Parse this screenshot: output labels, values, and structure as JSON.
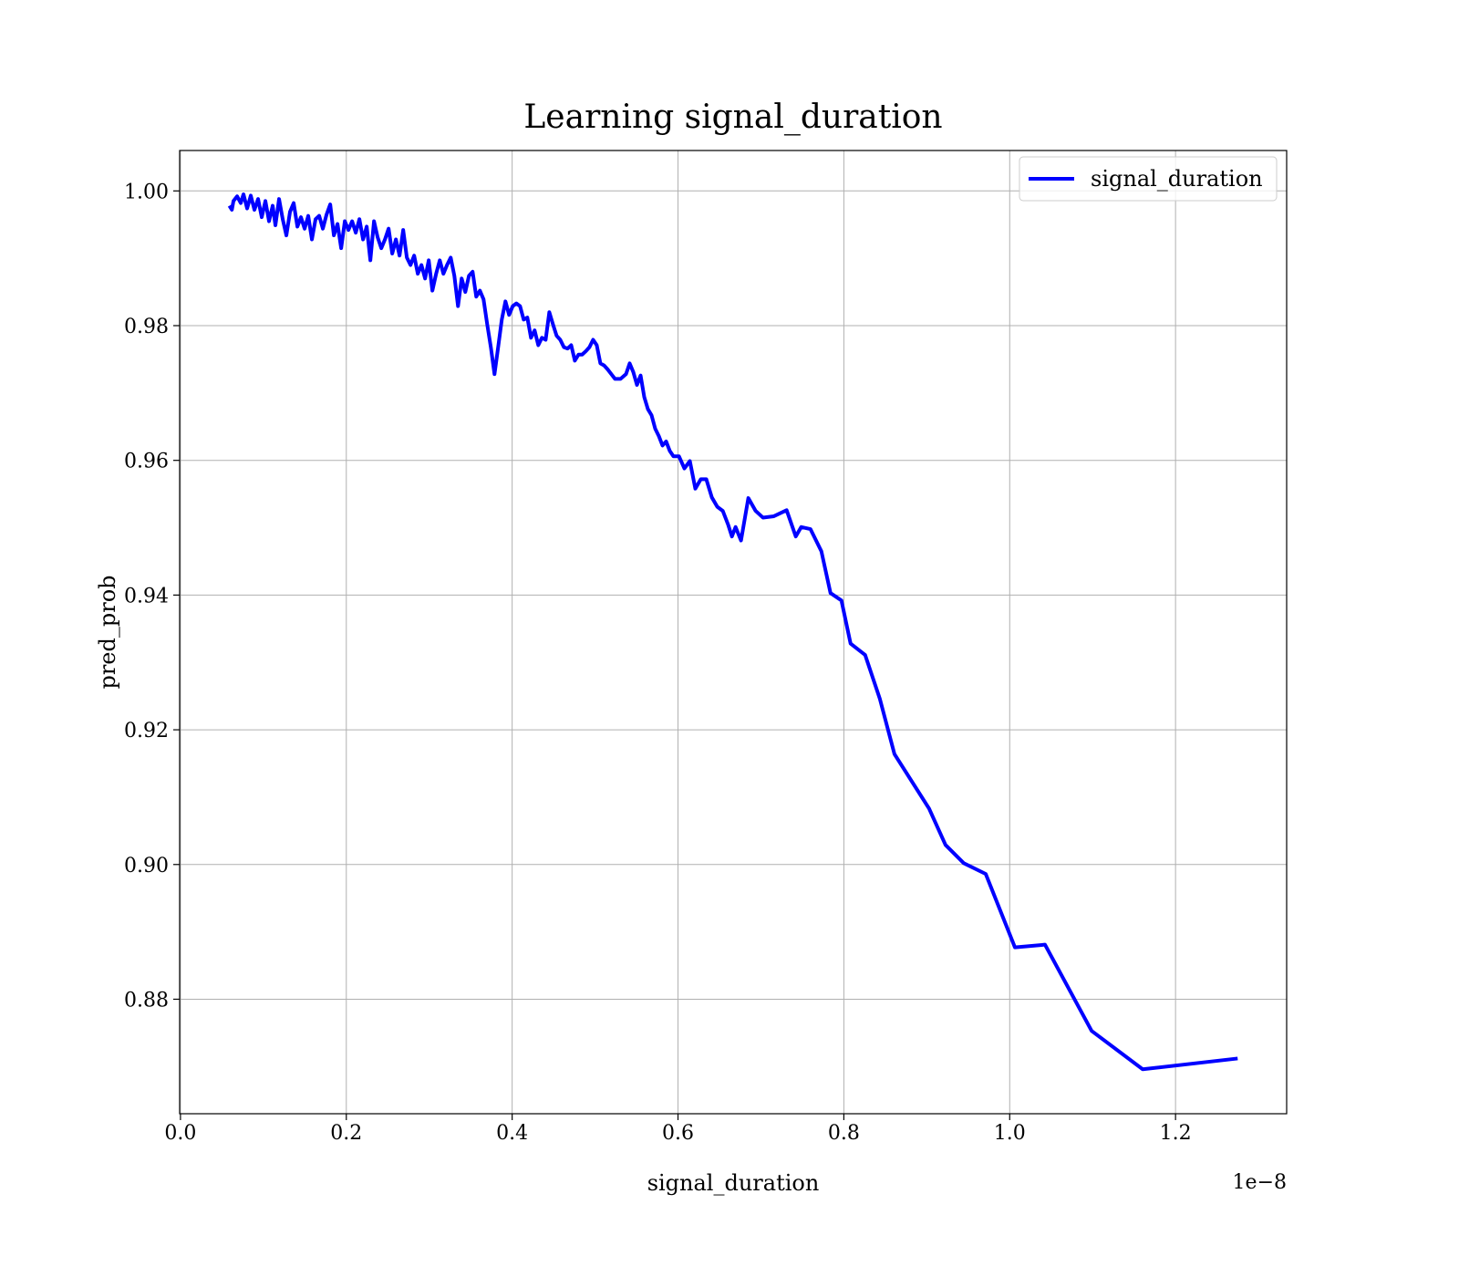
{
  "chart_data": {
    "type": "line",
    "title": "Learning signal_duration",
    "xlabel": "signal_duration",
    "ylabel": "pred_prob",
    "x_axis_offset": "1e−8",
    "xlim": [
      -0.001,
      1.334
    ],
    "ylim": [
      0.863,
      1.006
    ],
    "xticks": [
      {
        "value": 0,
        "label": "0.0"
      },
      0.2,
      0.4,
      0.6,
      0.8,
      {
        "value": 1,
        "label": "1.0"
      },
      1.2
    ],
    "yticks": [
      {
        "value": 0.88,
        "label": "0.88"
      },
      {
        "value": 0.9,
        "label": "0.90"
      },
      {
        "value": 0.92,
        "label": "0.92"
      },
      {
        "value": 0.94,
        "label": "0.94"
      },
      {
        "value": 0.96,
        "label": "0.96"
      },
      {
        "value": 0.98,
        "label": "0.98"
      },
      {
        "value": 1,
        "label": "1.00"
      }
    ],
    "grid": true,
    "legend": "upper right",
    "x": [
      0.059,
      0.062,
      0.0639,
      0.0683,
      0.0727,
      0.076,
      0.0804,
      0.0848,
      0.0892,
      0.0936,
      0.098,
      0.1024,
      0.1068,
      0.1112,
      0.1145,
      0.1189,
      0.1233,
      0.1277,
      0.1321,
      0.1365,
      0.141,
      0.1453,
      0.1497,
      0.1541,
      0.1585,
      0.1629,
      0.1673,
      0.1717,
      0.1762,
      0.1806,
      0.185,
      0.1894,
      0.1938,
      0.1982,
      0.2026,
      0.207,
      0.2114,
      0.2158,
      0.2202,
      0.2246,
      0.229,
      0.2334,
      0.2378,
      0.2422,
      0.2466,
      0.251,
      0.2554,
      0.2598,
      0.2642,
      0.2686,
      0.273,
      0.2774,
      0.2818,
      0.2862,
      0.2906,
      0.295,
      0.2994,
      0.3038,
      0.3083,
      0.3127,
      0.3171,
      0.3215,
      0.3259,
      0.3303,
      0.3347,
      0.3391,
      0.3435,
      0.3479,
      0.3523,
      0.3567,
      0.3611,
      0.3655,
      0.3699,
      0.3743,
      0.3787,
      0.3831,
      0.3875,
      0.3919,
      0.3963,
      0.4007,
      0.4051,
      0.4095,
      0.4139,
      0.4183,
      0.4227,
      0.4271,
      0.4315,
      0.4359,
      0.4404,
      0.4448,
      0.4492,
      0.4536,
      0.458,
      0.4624,
      0.4668,
      0.4712,
      0.4756,
      0.48,
      0.4844,
      0.4888,
      0.4932,
      0.4976,
      0.502,
      0.5064,
      0.5108,
      0.5152,
      0.5196,
      0.524,
      0.5307,
      0.5373,
      0.5417,
      0.5461,
      0.5505,
      0.5549,
      0.5593,
      0.5637,
      0.5681,
      0.5725,
      0.5769,
      0.5813,
      0.5857,
      0.5901,
      0.5945,
      0.6012,
      0.6077,
      0.6143,
      0.6209,
      0.6275,
      0.6341,
      0.6408,
      0.6474,
      0.654,
      0.6606,
      0.665,
      0.6694,
      0.676,
      0.6848,
      0.6936,
      0.7024,
      0.7156,
      0.731,
      0.742,
      0.7486,
      0.7597,
      0.7729,
      0.7839,
      0.7971,
      0.8081,
      0.8257,
      0.8434,
      0.861,
      0.9028,
      0.9226,
      0.9446,
      0.9711,
      1.0063,
      1.0426,
      1.0988,
      1.1604,
      1.2749
    ],
    "series": [
      {
        "name": "signal_duration",
        "color": "#0000ff",
        "values": [
          0.9978,
          0.9972,
          0.9985,
          0.9992,
          0.9982,
          0.9995,
          0.9974,
          0.9993,
          0.9972,
          0.9988,
          0.9961,
          0.9985,
          0.9955,
          0.9978,
          0.9949,
          0.9988,
          0.9958,
          0.9934,
          0.9969,
          0.9982,
          0.9947,
          0.9961,
          0.9944,
          0.9963,
          0.9928,
          0.9958,
          0.9963,
          0.9944,
          0.9965,
          0.998,
          0.9934,
          0.9951,
          0.9915,
          0.9955,
          0.9942,
          0.9955,
          0.9938,
          0.9958,
          0.9928,
          0.9947,
          0.9897,
          0.9955,
          0.9931,
          0.9915,
          0.9928,
          0.9944,
          0.9907,
          0.9928,
          0.9904,
          0.9942,
          0.9901,
          0.989,
          0.9904,
          0.9877,
          0.989,
          0.987,
          0.9897,
          0.9852,
          0.9877,
          0.9897,
          0.9877,
          0.989,
          0.9901,
          0.9874,
          0.9829,
          0.987,
          0.985,
          0.9874,
          0.988,
          0.9843,
          0.9852,
          0.9839,
          0.9802,
          0.9768,
          0.9728,
          0.9768,
          0.9809,
          0.9836,
          0.9816,
          0.9829,
          0.9833,
          0.9829,
          0.9809,
          0.9812,
          0.9782,
          0.9793,
          0.9771,
          0.9782,
          0.9779,
          0.982,
          0.9802,
          0.9785,
          0.9779,
          0.9768,
          0.9766,
          0.9771,
          0.9748,
          0.9757,
          0.9757,
          0.9762,
          0.9768,
          0.9779,
          0.9771,
          0.9744,
          0.9741,
          0.9735,
          0.9728,
          0.9721,
          0.9721,
          0.9728,
          0.9744,
          0.9731,
          0.9712,
          0.9726,
          0.9694,
          0.9676,
          0.9667,
          0.9647,
          0.9636,
          0.9622,
          0.9628,
          0.9614,
          0.9606,
          0.9606,
          0.9588,
          0.9599,
          0.9558,
          0.9572,
          0.9572,
          0.9545,
          0.9531,
          0.9525,
          0.9504,
          0.9487,
          0.9501,
          0.9481,
          0.9544,
          0.9525,
          0.9515,
          0.9517,
          0.9526,
          0.9487,
          0.9501,
          0.9498,
          0.9465,
          0.9403,
          0.9392,
          0.9328,
          0.9311,
          0.9246,
          0.9164,
          0.9083,
          0.9029,
          0.9002,
          0.8986,
          0.8877,
          0.8881,
          0.8753,
          0.8696,
          0.8712
        ]
      }
    ]
  }
}
